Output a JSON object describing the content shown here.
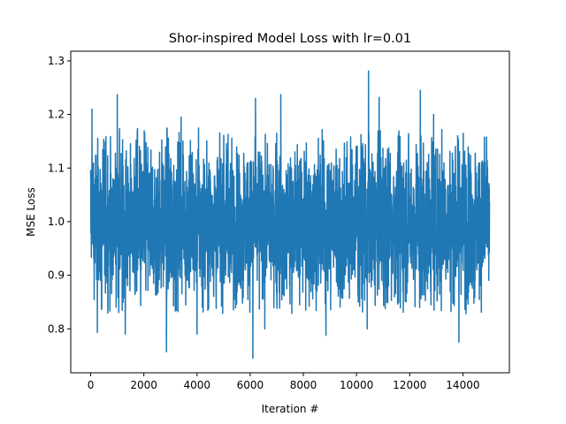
{
  "chart_data": {
    "type": "line",
    "title": "Shor-inspired Model Loss with lr=0.01",
    "xlabel": "Iteration #",
    "ylabel": "MSE Loss",
    "xlim": [
      -750,
      15750
    ],
    "ylim": [
      0.718,
      1.318
    ],
    "xticks": [
      0,
      2000,
      4000,
      6000,
      8000,
      10000,
      12000,
      14000
    ],
    "xtick_labels": [
      "0",
      "2000",
      "4000",
      "6000",
      "8000",
      "10000",
      "12000",
      "14000"
    ],
    "yticks": [
      0.8,
      0.9,
      1.0,
      1.1,
      1.2,
      1.3
    ],
    "ytick_labels": [
      "0.8",
      "0.9",
      "1.0",
      "1.1",
      "1.2",
      "1.3"
    ],
    "grid": false,
    "legend": "none",
    "series": [
      {
        "color": "#1f77b4",
        "x_range": [
          0,
          15000
        ],
        "n_points": 15001,
        "mean": 1.0,
        "band": [
          0.855,
          1.145
        ],
        "peaks": [
          {
            "x": 50,
            "y": 1.21
          },
          {
            "x": 1000,
            "y": 1.237
          },
          {
            "x": 3400,
            "y": 1.195
          },
          {
            "x": 6200,
            "y": 1.23
          },
          {
            "x": 7150,
            "y": 1.237
          },
          {
            "x": 10450,
            "y": 1.281
          },
          {
            "x": 10850,
            "y": 1.232
          },
          {
            "x": 12400,
            "y": 1.245
          },
          {
            "x": 12900,
            "y": 1.2
          }
        ],
        "troughs": [
          {
            "x": 250,
            "y": 0.793
          },
          {
            "x": 1300,
            "y": 0.79
          },
          {
            "x": 2850,
            "y": 0.757
          },
          {
            "x": 4000,
            "y": 0.79
          },
          {
            "x": 6100,
            "y": 0.745
          },
          {
            "x": 6550,
            "y": 0.8
          },
          {
            "x": 8850,
            "y": 0.788
          },
          {
            "x": 10400,
            "y": 0.8
          },
          {
            "x": 13850,
            "y": 0.775
          }
        ]
      }
    ]
  }
}
